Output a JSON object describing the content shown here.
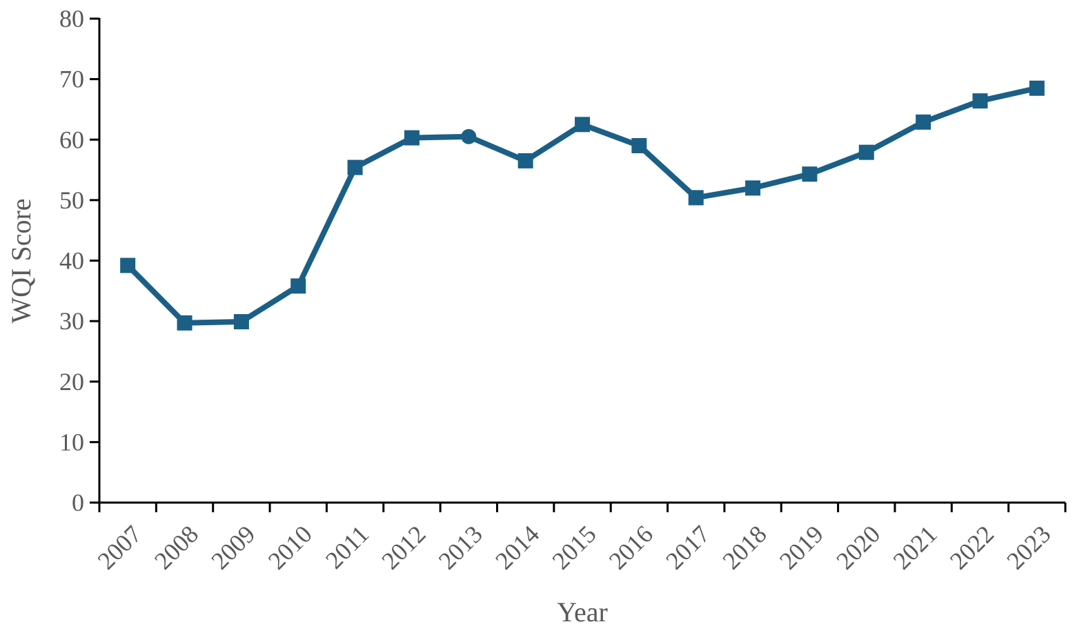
{
  "chart_data": {
    "type": "line",
    "title": "",
    "xlabel": "Year",
    "ylabel": "WQI Score",
    "ylim": [
      0,
      80
    ],
    "yticks": [
      "0",
      "10",
      "20",
      "30",
      "40",
      "50",
      "60",
      "70",
      "80"
    ],
    "grid": false,
    "legend": "none",
    "categories": [
      "2007",
      "2008",
      "2009",
      "2010",
      "2011",
      "2012",
      "2013",
      "2014",
      "2015",
      "2016",
      "2017",
      "2018",
      "2019",
      "2020",
      "2021",
      "2022",
      "2023"
    ],
    "series": [
      {
        "color": "#1b5f86",
        "values": [
          39.2,
          29.7,
          29.9,
          35.8,
          55.4,
          60.3,
          60.5,
          56.5,
          62.5,
          59.0,
          50.4,
          52.0,
          54.3,
          57.9,
          62.9,
          66.4,
          68.5
        ],
        "markers": [
          "square",
          "square",
          "square",
          "square",
          "square",
          "square",
          "circle",
          "square",
          "square",
          "square",
          "square",
          "square",
          "square",
          "square",
          "square",
          "square",
          "square"
        ]
      }
    ]
  }
}
